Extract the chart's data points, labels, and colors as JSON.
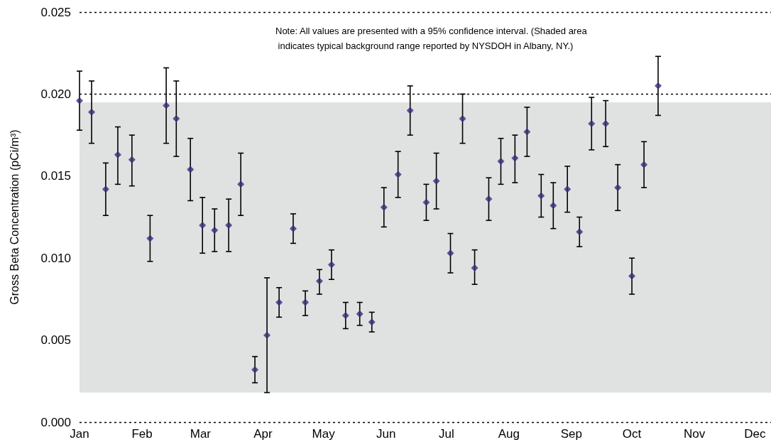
{
  "chart_data": {
    "type": "scatter",
    "ylabel": "Gross Beta Concentration (pCi/m³)",
    "annotations": [
      "Note: All values are presented with a 95% confidence interval. (Shaded area indicates typical background range reported by NYSDOH in Albany, NY.)"
    ],
    "x": [
      "--01-01",
      "--01-07",
      "--01-14",
      "--01-20",
      "--01-27",
      "--02-05",
      "--02-13",
      "--02-18",
      "--02-25",
      "--03-02",
      "--03-08",
      "--03-15",
      "--03-21",
      "--03-28",
      "--04-03",
      "--04-09",
      "--04-16",
      "--04-22",
      "--04-29",
      "--05-05",
      "--05-12",
      "--05-19",
      "--05-25",
      "--05-31",
      "--06-07",
      "--06-13",
      "--06-21",
      "--06-26",
      "--07-03",
      "--07-09",
      "--07-15",
      "--07-22",
      "--07-28",
      "--08-04",
      "--08-10",
      "--08-17",
      "--08-23",
      "--08-30",
      "--09-05",
      "--09-11",
      "--09-18",
      "--09-24",
      "--10-01",
      "--10-07",
      "--10-14"
    ],
    "series": [
      {
        "color": "#3b2a78",
        "values": [
          0.0196,
          0.0189,
          0.0142,
          0.0163,
          0.016,
          0.0112,
          0.0193,
          0.0185,
          0.0154,
          0.012,
          0.0117,
          0.012,
          0.0145,
          0.0032,
          0.0053,
          0.0073,
          0.0118,
          0.0073,
          0.0086,
          0.0096,
          0.0065,
          0.0066,
          0.0061,
          0.0131,
          0.0151,
          0.019,
          0.0134,
          0.0147,
          0.0103,
          0.0185,
          0.0094,
          0.0136,
          0.0159,
          0.0161,
          0.0177,
          0.0138,
          0.0132,
          0.0142,
          0.0116,
          0.0182,
          0.0182,
          0.0143,
          0.0089,
          0.0157,
          0.0205
        ],
        "errors": [
          [
            0.0178,
            0.0214
          ],
          [
            0.017,
            0.0208
          ],
          [
            0.0126,
            0.0158
          ],
          [
            0.0145,
            0.018
          ],
          [
            0.0144,
            0.0175
          ],
          [
            0.0098,
            0.0126
          ],
          [
            0.017,
            0.0216
          ],
          [
            0.0162,
            0.0208
          ],
          [
            0.0135,
            0.0173
          ],
          [
            0.0103,
            0.0137
          ],
          [
            0.0104,
            0.013
          ],
          [
            0.0104,
            0.0136
          ],
          [
            0.0126,
            0.0164
          ],
          [
            0.0024,
            0.004
          ],
          [
            0.0018,
            0.0088
          ],
          [
            0.0064,
            0.0082
          ],
          [
            0.0109,
            0.0127
          ],
          [
            0.0065,
            0.008
          ],
          [
            0.0078,
            0.0093
          ],
          [
            0.0087,
            0.0105
          ],
          [
            0.0057,
            0.0073
          ],
          [
            0.0059,
            0.0073
          ],
          [
            0.0055,
            0.0067
          ],
          [
            0.0119,
            0.0143
          ],
          [
            0.0137,
            0.0165
          ],
          [
            0.0175,
            0.0205
          ],
          [
            0.0123,
            0.0145
          ],
          [
            0.013,
            0.0164
          ],
          [
            0.0091,
            0.0115
          ],
          [
            0.017,
            0.02
          ],
          [
            0.0084,
            0.0105
          ],
          [
            0.0123,
            0.0149
          ],
          [
            0.0145,
            0.0173
          ],
          [
            0.0146,
            0.0175
          ],
          [
            0.0162,
            0.0192
          ],
          [
            0.0125,
            0.0151
          ],
          [
            0.0118,
            0.0146
          ],
          [
            0.0128,
            0.0156
          ],
          [
            0.0107,
            0.0125
          ],
          [
            0.0166,
            0.0198
          ],
          [
            0.0168,
            0.0196
          ],
          [
            0.0129,
            0.0157
          ],
          [
            0.0078,
            0.01
          ],
          [
            0.0143,
            0.0171
          ],
          [
            0.0187,
            0.0223
          ]
        ]
      }
    ],
    "xlim": [
      "--01-01",
      "--12-09"
    ],
    "xticks": [
      {
        "value": "--01-01",
        "label": "Jan"
      },
      {
        "value": "--02-01",
        "label": "Feb"
      },
      {
        "value": "--03-01",
        "label": "Mar"
      },
      {
        "value": "--04-01",
        "label": "Apr"
      },
      {
        "value": "--05-01",
        "label": "May"
      },
      {
        "value": "--06-01",
        "label": "Jun"
      },
      {
        "value": "--07-01",
        "label": "Jul"
      },
      {
        "value": "--08-01",
        "label": "Aug"
      },
      {
        "value": "--09-01",
        "label": "Sep"
      },
      {
        "value": "--10-01",
        "label": "Oct"
      },
      {
        "value": "--11-01",
        "label": "Nov"
      },
      {
        "value": "--12-01",
        "label": "Dec"
      }
    ],
    "ylim": [
      0,
      0.025
    ],
    "yticks": [
      {
        "value": 0,
        "label": "0.000"
      },
      {
        "value": 0.005,
        "label": "0.005"
      },
      {
        "value": 0.01,
        "label": "0.010"
      },
      {
        "value": 0.015,
        "label": "0.015"
      },
      {
        "value": 0.02,
        "label": "0.020"
      },
      {
        "value": 0.025,
        "label": "0.025"
      }
    ],
    "bands": [
      {
        "axis": "y",
        "from": 0.0018,
        "to": 0.0195,
        "color": "#e0e1e1"
      }
    ],
    "grid": "y",
    "marker": "diamond"
  }
}
